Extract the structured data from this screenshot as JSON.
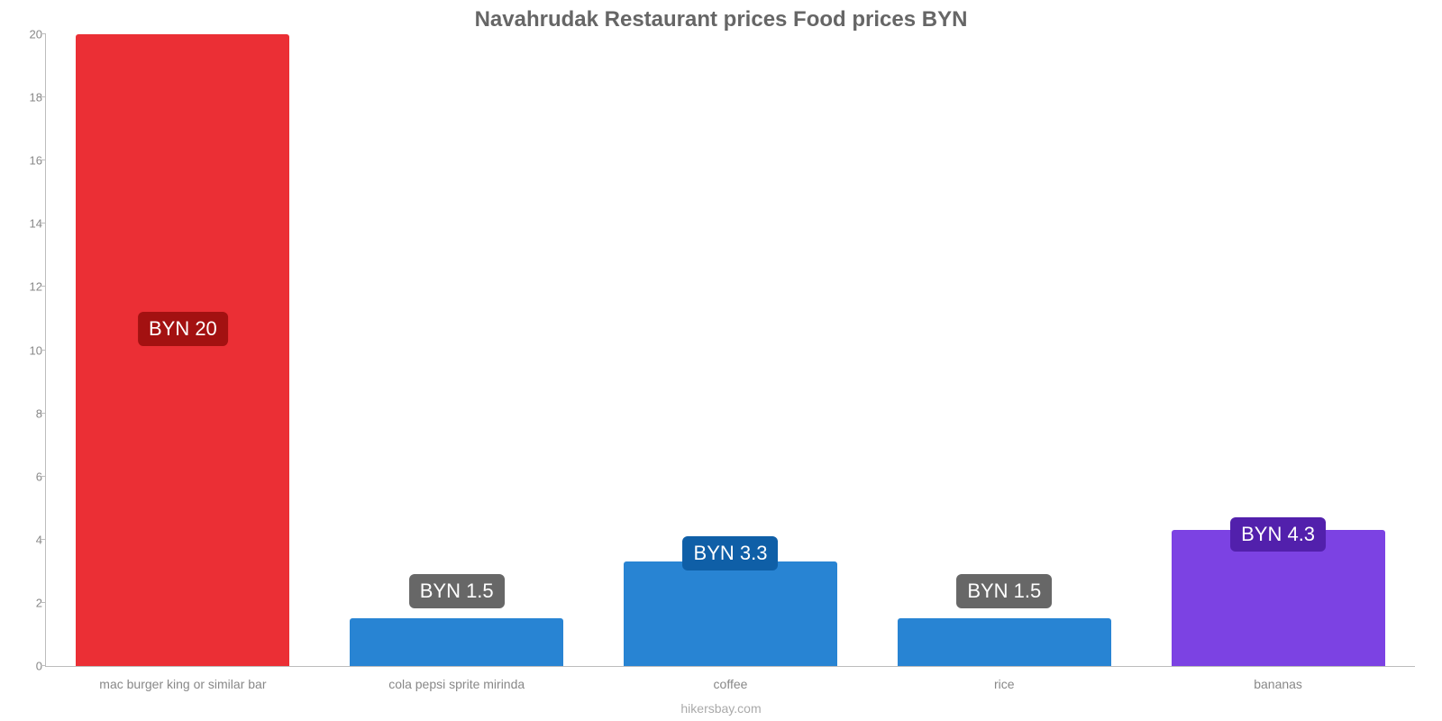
{
  "chart": {
    "type": "bar",
    "title": "Navahrudak Restaurant prices Food prices BYN",
    "title_fontsize": 24,
    "title_color": "#666666",
    "footer": "hikersbay.com",
    "footer_color": "#aaaaaa",
    "background_color": "#ffffff",
    "axis_color": "#bdbdbd",
    "tick_label_color": "#888888",
    "tick_label_fontsize": 13,
    "xlabel_fontsize": 14,
    "value_label_fontsize": 22,
    "ylim": [
      0,
      20
    ],
    "ytick_step": 2,
    "bar_width": 0.78,
    "categories": [
      "mac burger king or similar bar",
      "cola pepsi sprite mirinda",
      "coffee",
      "rice",
      "bananas"
    ],
    "values": [
      20,
      1.5,
      3.3,
      1.5,
      4.3
    ],
    "value_labels": [
      "BYN 20",
      "BYN 1.5",
      "BYN 3.3",
      "BYN 1.5",
      "BYN 4.3"
    ],
    "bar_colors": [
      "#eb2f35",
      "#2884d3",
      "#2884d3",
      "#2884d3",
      "#7c42e3"
    ],
    "label_bg_colors": [
      "#a31111",
      "#676767",
      "#0f5fa7",
      "#676767",
      "#5220ac"
    ],
    "label_positions_from_top_pct": [
      44,
      85.5,
      79.5,
      85.5,
      76.5
    ]
  }
}
